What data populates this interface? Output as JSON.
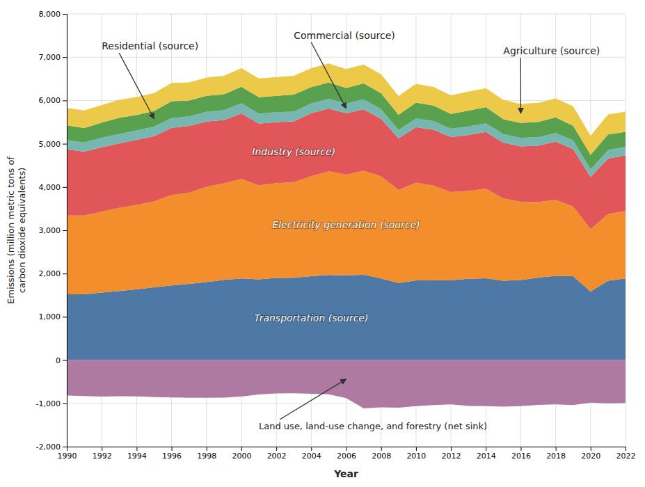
{
  "chart_data": {
    "type": "area",
    "stacked": true,
    "grid": true,
    "xlabel": "Year",
    "ylabel": "Emissions (million metric tons of\ncarbon dioxide equivalents)",
    "x": [
      1990,
      1991,
      1992,
      1993,
      1994,
      1995,
      1996,
      1997,
      1998,
      1999,
      2000,
      2001,
      2002,
      2003,
      2004,
      2005,
      2006,
      2007,
      2008,
      2009,
      2010,
      2011,
      2012,
      2013,
      2014,
      2015,
      2016,
      2017,
      2018,
      2019,
      2020,
      2021,
      2022
    ],
    "xlim": [
      1990,
      2022
    ],
    "xticks": [
      1990,
      1992,
      1994,
      1996,
      1998,
      2000,
      2002,
      2004,
      2006,
      2008,
      2010,
      2012,
      2014,
      2016,
      2018,
      2020,
      2022
    ],
    "ylim": [
      -2000,
      8000
    ],
    "yticks": [
      {
        "value": -2000,
        "label": "-2,000"
      },
      {
        "value": -1000,
        "label": "-1,000"
      },
      0,
      {
        "value": 1000,
        "label": "1,000"
      },
      {
        "value": 2000,
        "label": "2,000"
      },
      {
        "value": 3000,
        "label": "3,000"
      },
      {
        "value": 4000,
        "label": "4,000"
      },
      {
        "value": 5000,
        "label": "5,000"
      },
      {
        "value": 6000,
        "label": "6,000"
      },
      {
        "value": 7000,
        "label": "7,000"
      },
      {
        "value": 8000,
        "label": "8,000"
      }
    ],
    "series": [
      {
        "name": "Transportation (source)",
        "values": [
          1522,
          1521,
          1563,
          1596,
          1637,
          1680,
          1725,
          1761,
          1801,
          1853,
          1888,
          1865,
          1900,
          1901,
          1939,
          1967,
          1958,
          1974,
          1888,
          1782,
          1843,
          1848,
          1848,
          1879,
          1892,
          1835,
          1850,
          1905,
          1948,
          1937,
          1584,
          1835,
          1886
        ]
      },
      {
        "name": "Electricity generation (source)",
        "values": [
          1820,
          1820,
          1868,
          1923,
          1949,
          1987,
          2092,
          2108,
          2203,
          2231,
          2296,
          2172,
          2190,
          2208,
          2311,
          2395,
          2330,
          2402,
          2357,
          2149,
          2257,
          2186,
          2038,
          2030,
          2069,
          1901,
          1808,
          1745,
          1756,
          1611,
          1444,
          1537,
          1560
        ]
      },
      {
        "name": "Industry (source)",
        "values": [
          1526,
          1476,
          1489,
          1487,
          1503,
          1508,
          1549,
          1543,
          1508,
          1463,
          1518,
          1428,
          1412,
          1409,
          1455,
          1451,
          1416,
          1418,
          1330,
          1193,
          1283,
          1291,
          1267,
          1294,
          1310,
          1291,
          1278,
          1305,
          1347,
          1328,
          1200,
          1282,
          1285
        ]
      },
      {
        "name": "Commercial (source)",
        "values": [
          216,
          211,
          217,
          219,
          220,
          222,
          228,
          222,
          224,
          229,
          232,
          228,
          228,
          223,
          224,
          225,
          224,
          231,
          221,
          196,
          202,
          200,
          194,
          198,
          200,
          196,
          198,
          196,
          196,
          200,
          183,
          200,
          199
        ]
      },
      {
        "name": "Residential (source)",
        "values": [
          338,
          337,
          349,
          375,
          356,
          360,
          389,
          364,
          370,
          366,
          381,
          382,
          378,
          396,
          378,
          380,
          360,
          371,
          373,
          347,
          366,
          356,
          340,
          364,
          373,
          347,
          346,
          355,
          361,
          339,
          334,
          362,
          345
        ]
      },
      {
        "name": "Agriculture (source)",
        "values": [
          404,
          403,
          409,
          414,
          414,
          416,
          420,
          418,
          424,
          428,
          432,
          432,
          432,
          434,
          437,
          437,
          437,
          435,
          436,
          436,
          434,
          432,
          432,
          438,
          441,
          443,
          440,
          440,
          440,
          449,
          441,
          462,
          468
        ]
      },
      {
        "name": "Land use, land-use change, and forestry (net sink)",
        "values": [
          -820,
          -830,
          -841,
          -836,
          -838,
          -855,
          -862,
          -870,
          -872,
          -865,
          -842,
          -793,
          -769,
          -766,
          -779,
          -789,
          -877,
          -1115,
          -1090,
          -1100,
          -1065,
          -1039,
          -1025,
          -1058,
          -1064,
          -1077,
          -1062,
          -1036,
          -1025,
          -1040,
          -983,
          -1000,
          -990
        ]
      }
    ]
  }
}
